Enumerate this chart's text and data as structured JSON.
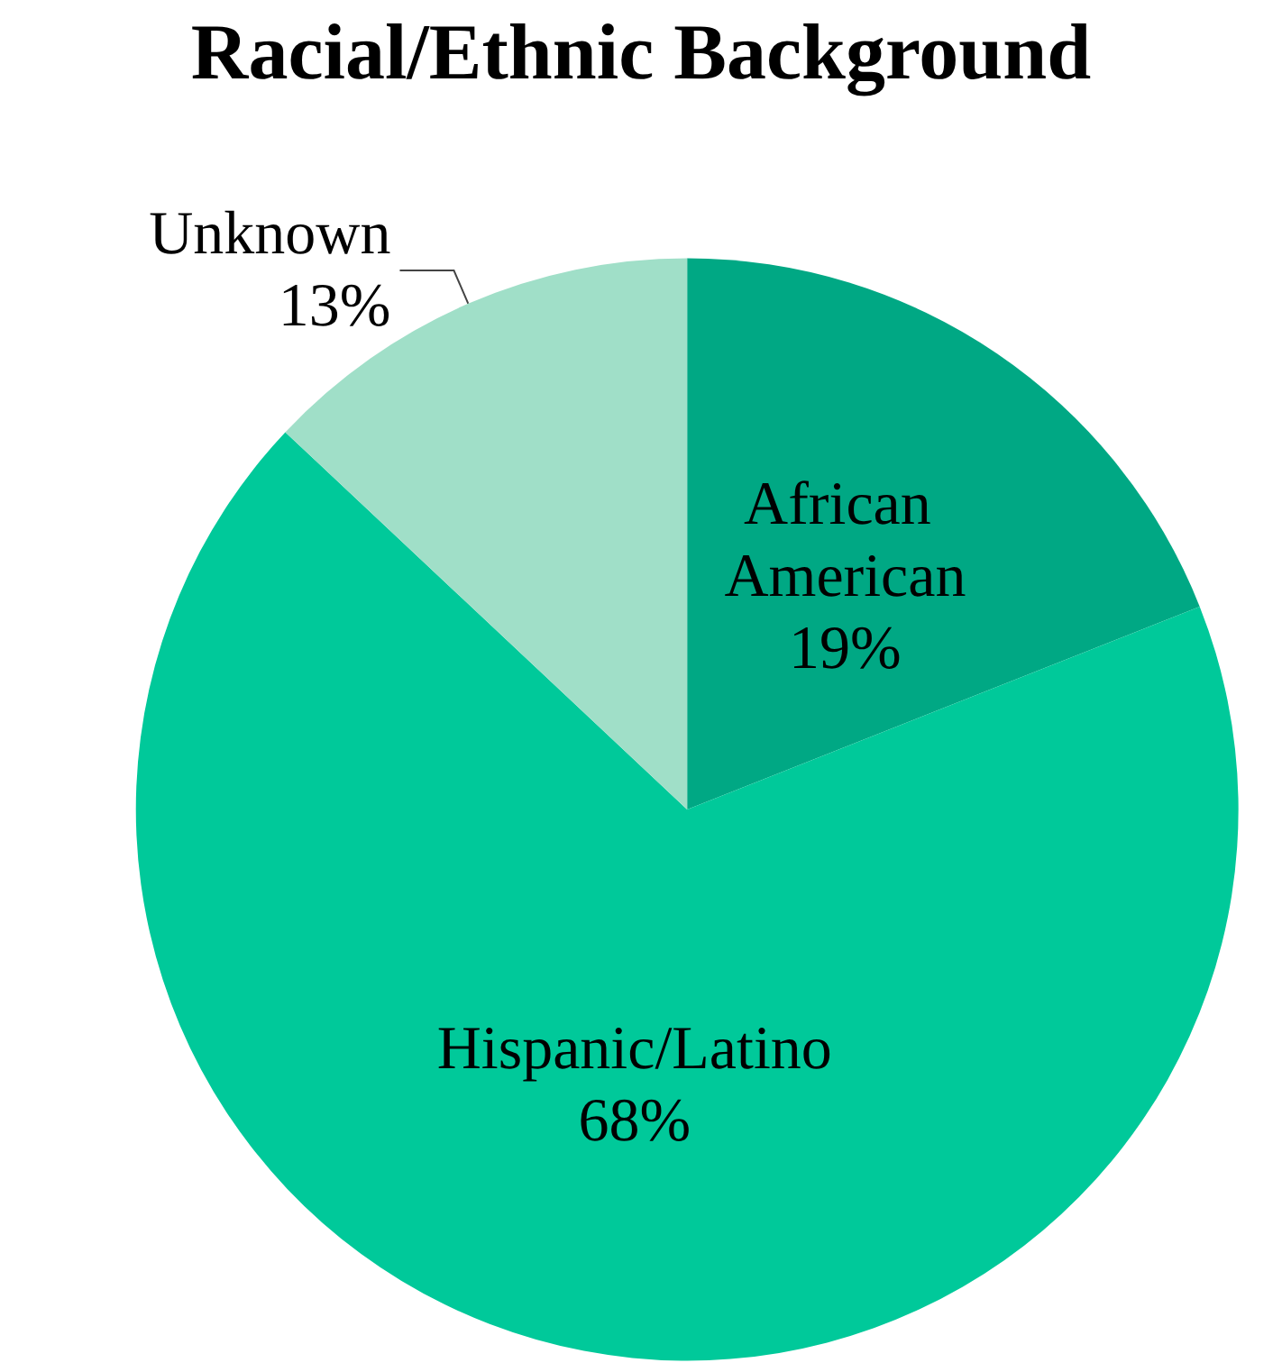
{
  "chart_data": {
    "type": "pie",
    "title": "Racial/Ethnic Background",
    "categories": [
      "African American",
      "Hispanic/Latino",
      "Unknown"
    ],
    "values": [
      19,
      68,
      13
    ],
    "value_labels": [
      "19%",
      "68%",
      "13%"
    ],
    "colors": [
      "#00a884",
      "#00c99a",
      "#a0dfc8"
    ],
    "legend": false
  }
}
